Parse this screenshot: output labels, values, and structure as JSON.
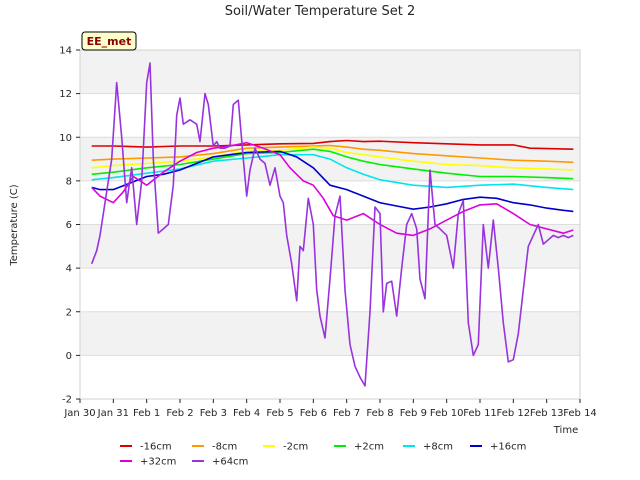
{
  "chart_data": {
    "type": "line",
    "title": "Soil/Water Temperature Set 2",
    "xlabel": "Time",
    "ylabel": "Temperature (C)",
    "badge": "EE_met",
    "xlim": [
      0,
      15
    ],
    "ylim": [
      -2,
      14
    ],
    "x_ticks": [
      {
        "x": 0,
        "label": "Jan 30"
      },
      {
        "x": 1,
        "label": "Jan 31"
      },
      {
        "x": 2,
        "label": "Feb 1"
      },
      {
        "x": 3,
        "label": "Feb 2"
      },
      {
        "x": 4,
        "label": "Feb 3"
      },
      {
        "x": 5,
        "label": "Feb 4"
      },
      {
        "x": 6,
        "label": "Feb 5"
      },
      {
        "x": 7,
        "label": "Feb 6"
      },
      {
        "x": 8,
        "label": "Feb 7"
      },
      {
        "x": 9,
        "label": "Feb 8"
      },
      {
        "x": 10,
        "label": "Feb 9"
      },
      {
        "x": 11,
        "label": "Feb 10"
      },
      {
        "x": 12,
        "label": "Feb 11"
      },
      {
        "x": 13,
        "label": "Feb 12"
      },
      {
        "x": 14,
        "label": "Feb 13"
      },
      {
        "x": 15,
        "label": "Feb 14"
      }
    ],
    "y_ticks": [
      -2,
      0,
      2,
      4,
      6,
      8,
      10,
      12,
      14
    ],
    "series": [
      {
        "name": "-16cm",
        "color": "#dd0000",
        "x": [
          0.35,
          1,
          2,
          3,
          4,
          5,
          6,
          7,
          7.5,
          8,
          8.5,
          9,
          10,
          11,
          12,
          13,
          13.5,
          14,
          14.8
        ],
        "y": [
          9.6,
          9.6,
          9.55,
          9.6,
          9.6,
          9.65,
          9.7,
          9.72,
          9.8,
          9.85,
          9.8,
          9.82,
          9.75,
          9.7,
          9.65,
          9.65,
          9.5,
          9.48,
          9.45
        ]
      },
      {
        "name": "-8cm",
        "color": "#ff9900",
        "x": [
          0.35,
          1,
          2,
          3,
          4,
          5,
          6,
          7,
          7.5,
          8,
          8.5,
          9,
          10,
          11,
          12,
          13,
          14,
          14.8
        ],
        "y": [
          8.95,
          9.0,
          9.05,
          9.1,
          9.25,
          9.5,
          9.55,
          9.6,
          9.62,
          9.55,
          9.45,
          9.4,
          9.25,
          9.15,
          9.05,
          8.95,
          8.9,
          8.85
        ]
      },
      {
        "name": "-2cm",
        "color": "#ffff00",
        "x": [
          0.35,
          1,
          2,
          3,
          4,
          5,
          6,
          7,
          7.5,
          8,
          8.5,
          9,
          10,
          11,
          12,
          13,
          14,
          14.8
        ],
        "y": [
          8.6,
          8.7,
          8.8,
          8.9,
          9.1,
          9.35,
          9.4,
          9.55,
          9.5,
          9.3,
          9.2,
          9.1,
          8.9,
          8.75,
          8.7,
          8.6,
          8.55,
          8.5
        ]
      },
      {
        "name": "+2cm",
        "color": "#00ee00",
        "x": [
          0.35,
          1,
          2,
          3,
          4,
          5,
          6,
          7,
          7.5,
          8,
          8.5,
          9,
          10,
          11,
          12,
          13,
          14,
          14.8
        ],
        "y": [
          8.3,
          8.4,
          8.6,
          8.75,
          9.0,
          9.25,
          9.3,
          9.45,
          9.35,
          9.1,
          8.9,
          8.75,
          8.55,
          8.35,
          8.2,
          8.2,
          8.15,
          8.1
        ]
      },
      {
        "name": "+8cm",
        "color": "#00e5ee",
        "x": [
          0.35,
          1,
          2,
          3,
          4,
          5,
          6,
          7,
          7.5,
          8,
          8.5,
          9,
          10,
          11,
          12,
          13,
          14,
          14.8
        ],
        "y": [
          8.05,
          8.15,
          8.35,
          8.55,
          8.9,
          9.05,
          9.2,
          9.2,
          9.0,
          8.6,
          8.3,
          8.05,
          7.8,
          7.7,
          7.8,
          7.85,
          7.7,
          7.6
        ]
      },
      {
        "name": "+16cm",
        "color": "#0000cc",
        "x": [
          0.35,
          0.6,
          1,
          1.5,
          2,
          2.5,
          3,
          3.5,
          4,
          4.5,
          5,
          6,
          6.5,
          7,
          7.5,
          8,
          8.5,
          9,
          9.5,
          10,
          10.5,
          11,
          11.5,
          12,
          12.5,
          13,
          13.5,
          14,
          14.5,
          14.8
        ],
        "y": [
          7.7,
          7.6,
          7.6,
          7.9,
          8.2,
          8.3,
          8.5,
          8.8,
          9.1,
          9.2,
          9.3,
          9.35,
          9.1,
          8.6,
          7.8,
          7.6,
          7.3,
          7.0,
          6.85,
          6.7,
          6.8,
          6.95,
          7.15,
          7.25,
          7.2,
          7.0,
          6.9,
          6.75,
          6.65,
          6.6
        ]
      },
      {
        "name": "+32cm",
        "color": "#dd00dd",
        "x": [
          0.35,
          0.6,
          1,
          1.3,
          1.6,
          2,
          2.5,
          3,
          3.5,
          4,
          4.5,
          5,
          5.5,
          6,
          6.3,
          6.7,
          7,
          7.3,
          7.6,
          8,
          8.5,
          9,
          9.5,
          10,
          10.5,
          11,
          11.5,
          12,
          12.5,
          13,
          13.5,
          14,
          14.5,
          14.8
        ],
        "y": [
          7.7,
          7.3,
          7.0,
          7.5,
          8.2,
          7.8,
          8.4,
          8.9,
          9.3,
          9.5,
          9.6,
          9.75,
          9.5,
          9.2,
          8.6,
          8.0,
          7.8,
          7.2,
          6.4,
          6.2,
          6.5,
          6.0,
          5.6,
          5.5,
          5.8,
          6.2,
          6.6,
          6.9,
          6.95,
          6.5,
          6.0,
          5.8,
          5.6,
          5.75
        ]
      },
      {
        "name": "+64cm",
        "color": "#9933dd",
        "x": [
          0.35,
          0.5,
          0.6,
          0.75,
          0.95,
          1.1,
          1.25,
          1.4,
          1.55,
          1.7,
          1.85,
          2.0,
          2.1,
          2.2,
          2.35,
          2.5,
          2.65,
          2.8,
          2.9,
          3.0,
          3.1,
          3.3,
          3.5,
          3.6,
          3.75,
          3.85,
          4.0,
          4.1,
          4.2,
          4.35,
          4.5,
          4.6,
          4.75,
          4.9,
          5.0,
          5.1,
          5.25,
          5.4,
          5.55,
          5.7,
          5.85,
          6.0,
          6.1,
          6.2,
          6.35,
          6.5,
          6.6,
          6.7,
          6.85,
          7.0,
          7.1,
          7.2,
          7.35,
          7.5,
          7.65,
          7.8,
          7.95,
          8.1,
          8.25,
          8.4,
          8.55,
          8.7,
          8.85,
          9.0,
          9.1,
          9.2,
          9.35,
          9.5,
          9.65,
          9.8,
          9.95,
          10.1,
          10.2,
          10.35,
          10.5,
          10.65,
          10.8,
          11.0,
          11.2,
          11.35,
          11.5,
          11.65,
          11.8,
          11.95,
          12.1,
          12.25,
          12.4,
          12.55,
          12.7,
          12.85,
          13.0,
          13.15,
          13.3,
          13.45,
          13.6,
          13.75,
          13.9,
          14.05,
          14.2,
          14.35,
          14.5,
          14.65,
          14.8
        ],
        "y": [
          4.2,
          4.8,
          5.5,
          7.0,
          9.0,
          12.5,
          10.0,
          7.0,
          8.6,
          6.0,
          8.0,
          12.5,
          13.4,
          9.0,
          5.6,
          5.8,
          6.0,
          7.8,
          11.0,
          11.8,
          10.6,
          10.8,
          10.6,
          9.8,
          12.0,
          11.5,
          9.6,
          9.8,
          9.5,
          9.5,
          9.6,
          11.5,
          11.7,
          9.0,
          7.3,
          8.5,
          9.5,
          9.0,
          8.8,
          7.8,
          8.6,
          7.3,
          7.0,
          5.5,
          4.2,
          2.5,
          5.0,
          4.8,
          7.2,
          6.0,
          3.0,
          1.8,
          0.8,
          3.5,
          6.4,
          7.3,
          3.0,
          0.5,
          -0.5,
          -1.0,
          -1.4,
          2.0,
          6.8,
          6.5,
          2.0,
          3.3,
          3.4,
          1.8,
          4.0,
          6.0,
          6.5,
          5.8,
          3.5,
          2.6,
          8.5,
          6.0,
          5.8,
          5.5,
          4.0,
          6.5,
          7.1,
          1.5,
          0.0,
          0.5,
          6.0,
          4.0,
          6.2,
          4.0,
          1.5,
          -0.3,
          -0.2,
          1.0,
          3.0,
          5.0,
          5.5,
          6.0,
          5.1,
          5.3,
          5.5,
          5.4,
          5.5,
          5.4,
          5.5
        ]
      }
    ]
  }
}
